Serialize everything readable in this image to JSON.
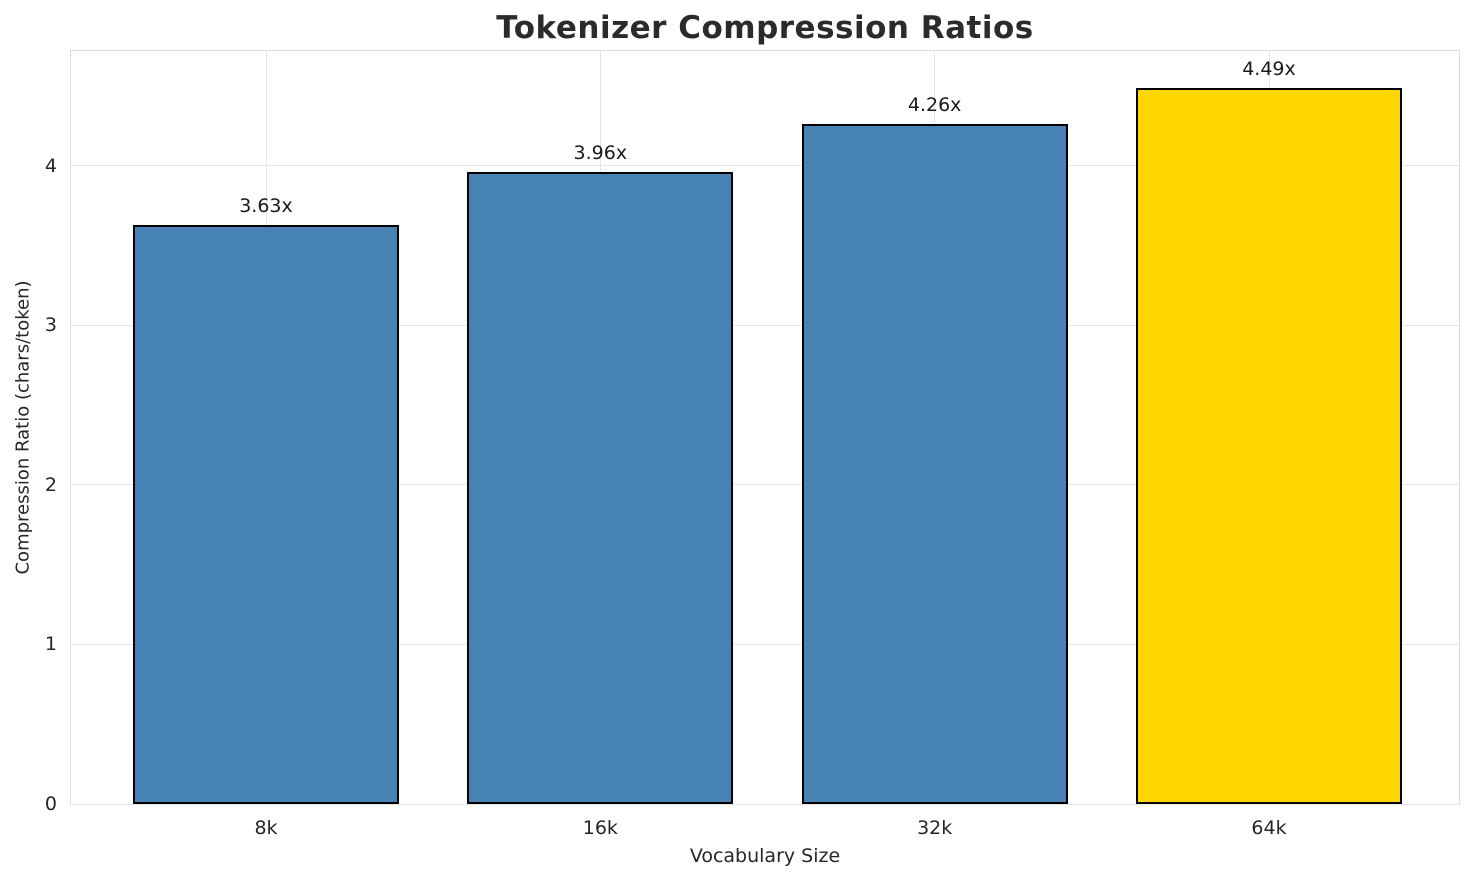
{
  "chart_data": {
    "type": "bar",
    "title": "Tokenizer Compression Ratios",
    "xlabel": "Vocabulary Size",
    "ylabel": "Compression Ratio (chars/token)",
    "categories": [
      "8k",
      "16k",
      "32k",
      "64k"
    ],
    "values": [
      3.63,
      3.96,
      4.26,
      4.49
    ],
    "bar_labels": [
      "3.63x",
      "3.96x",
      "4.26x",
      "4.49x"
    ],
    "yticks": [
      0,
      1,
      2,
      3,
      4
    ],
    "ylim": [
      0,
      4.72
    ],
    "grid": true,
    "legend": "none",
    "bar_colors": [
      "#4682B4",
      "#4682B4",
      "#4682B4",
      "#FFD700"
    ],
    "base_color": "#4682B4",
    "highlight_color": "#FFD700",
    "bar_edge_color": "#000000",
    "grid_color": "#e6e6e6",
    "title_color": "#2b2b2b"
  }
}
